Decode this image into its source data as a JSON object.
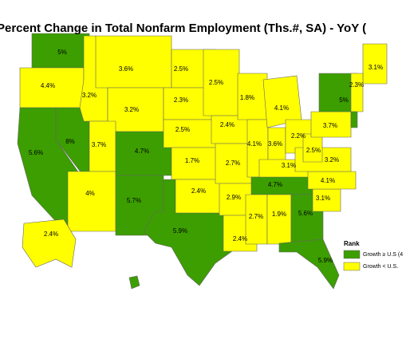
{
  "title": "Percent Change in Total Nonfarm Employment (Ths.#, SA) - YoY (",
  "legend": {
    "title": "Rank",
    "items": [
      {
        "label": "Growth ≥ U.S (4",
        "color": "#3c9e00"
      },
      {
        "label": "Growth < U.S.",
        "color": "#ffff00"
      }
    ]
  },
  "states": [
    {
      "label": "5%",
      "rank": 0
    },
    {
      "label": "4.4%",
      "rank": 1
    },
    {
      "label": "5.6%",
      "rank": 0
    },
    {
      "label": "8%",
      "rank": 0
    },
    {
      "label": "3.2%",
      "rank": 1
    },
    {
      "label": "3.6%",
      "rank": 1
    },
    {
      "label": "3.2%",
      "rank": 1
    },
    {
      "label": "3.7%",
      "rank": 1
    },
    {
      "label": "4%",
      "rank": 1
    },
    {
      "label": "4.7%",
      "rank": 0
    },
    {
      "label": "5.7%",
      "rank": 0
    },
    {
      "label": "2.5%",
      "rank": 1
    },
    {
      "label": "2.3%",
      "rank": 1
    },
    {
      "label": "2.5%",
      "rank": 1
    },
    {
      "label": "1.7%",
      "rank": 1
    },
    {
      "label": "5.9%",
      "rank": 0
    },
    {
      "label": "2.4%",
      "rank": 1
    },
    {
      "label": "2.5%",
      "rank": 1
    },
    {
      "label": "2.4%",
      "rank": 1
    },
    {
      "label": "2.7%",
      "rank": 1
    },
    {
      "label": "2.9%",
      "rank": 1
    },
    {
      "label": "2.4%",
      "rank": 1
    },
    {
      "label": "1.8%",
      "rank": 1
    },
    {
      "label": "4.1%",
      "rank": 1
    },
    {
      "label": "4.1%",
      "rank": 1
    },
    {
      "label": "3.6%",
      "rank": 1
    },
    {
      "label": "2.2%",
      "rank": 1
    },
    {
      "label": "3.1%",
      "rank": 1
    },
    {
      "label": "4.7%",
      "rank": 0
    },
    {
      "label": "2.7%",
      "rank": 1
    },
    {
      "label": "1.9%",
      "rank": 1
    },
    {
      "label": "5.6%",
      "rank": 0
    },
    {
      "label": "5.9%",
      "rank": 0
    },
    {
      "label": "3.1%",
      "rank": 1
    },
    {
      "label": "4.1%",
      "rank": 1
    },
    {
      "label": "3.2%",
      "rank": 1
    },
    {
      "label": "2.5%",
      "rank": 1
    },
    {
      "label": "3.7%",
      "rank": 1
    },
    {
      "label": "5%",
      "rank": 0
    },
    {
      "label": "3.1%",
      "rank": 1
    },
    {
      "label": "2.3%",
      "rank": 1
    },
    {
      "label": "2.4%",
      "rank": 1
    }
  ]
}
